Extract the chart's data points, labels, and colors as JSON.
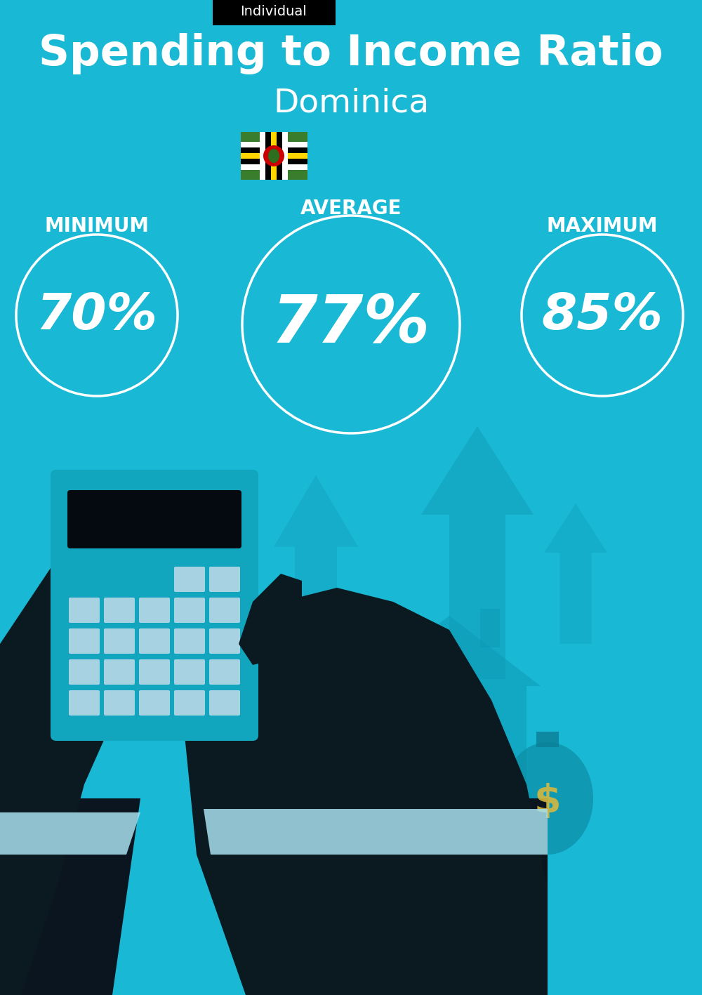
{
  "bg_color": "#19b8d4",
  "title": "Spending to Income Ratio",
  "subtitle": "Dominica",
  "tag_text": "Individual",
  "tag_bg": "#000000",
  "tag_text_color": "#ffffff",
  "min_label": "MINIMUM",
  "avg_label": "AVERAGE",
  "max_label": "MAXIMUM",
  "min_value": "70%",
  "avg_value": "77%",
  "max_value": "85%",
  "circle_color": "#ffffff",
  "text_color": "#ffffff",
  "title_fontsize": 44,
  "subtitle_fontsize": 34,
  "value_fontsize_small": 52,
  "value_fontsize_large": 68,
  "label_fontsize": 20,
  "tag_fontsize": 14,
  "figsize": [
    10.0,
    14.17
  ]
}
